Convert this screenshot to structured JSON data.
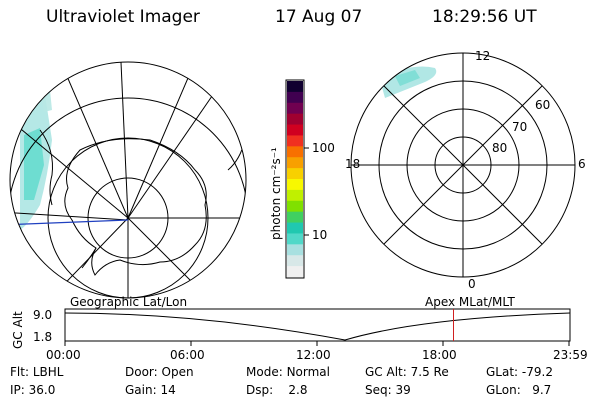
{
  "header": {
    "instrument": "Ultraviolet Imager",
    "date": "17 Aug 07",
    "time": "18:29:56 UT"
  },
  "colorbar": {
    "unit_label": "photon cm⁻²s⁻¹",
    "scale": "log",
    "ticks": [
      {
        "value": 10,
        "label": "10"
      },
      {
        "value": 100,
        "label": "100"
      }
    ],
    "colors": [
      "#f0f0f0",
      "#d8e8e8",
      "#a8e0e0",
      "#50d8c8",
      "#20c8b0",
      "#40d060",
      "#80e000",
      "#c0f000",
      "#f8f800",
      "#f8d000",
      "#f8a000",
      "#f87000",
      "#f03020",
      "#d00020",
      "#a00030",
      "#700050",
      "#400050",
      "#100030"
    ]
  },
  "polar_map": {
    "local_time_labels": {
      "top": "12",
      "left": "18",
      "right": "6",
      "bottom": "0"
    },
    "latitude_labels": [
      "60",
      "70",
      "80"
    ]
  },
  "timeline": {
    "left_label": "Geographic Lat/Lon",
    "right_label": "Apex  MLat/MLT",
    "y_axis_label": "GC Alt",
    "y_ticks": [
      "9.0",
      "1.8"
    ],
    "x_ticks": [
      "00:00",
      "06:00",
      "12:00",
      "18:00",
      "23:59"
    ],
    "current_time_hours": 18.5,
    "marker_color": "#d02020"
  },
  "footer": {
    "filter": {
      "label": "Flt:",
      "value": "LBHL"
    },
    "ip": {
      "label": "IP:",
      "value": "36.0"
    },
    "door": {
      "label": "Door:",
      "value": "Open"
    },
    "gain": {
      "label": "Gain:",
      "value": "14"
    },
    "mode": {
      "label": "Mode:",
      "value": "Normal"
    },
    "dsp": {
      "label": "Dsp:",
      "value": "2.8"
    },
    "gc_alt": {
      "label": "GC Alt:",
      "value": "7.5 Re"
    },
    "seq": {
      "label": "Seq:",
      "value": "39"
    },
    "glat": {
      "label": "GLat:",
      "value": "-79.2"
    },
    "glon": {
      "label": "GLon:",
      "value": "9.7"
    }
  }
}
